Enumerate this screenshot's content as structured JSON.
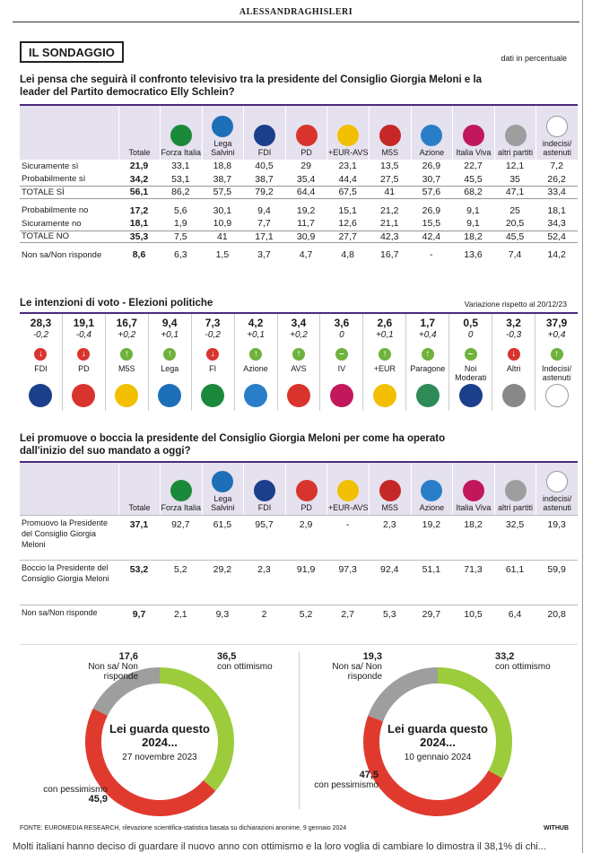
{
  "header": {
    "title": "ALESSANDRAGHISLERI"
  },
  "badge": "IL SONDAGGIO",
  "unit_note": "dati in percentuale",
  "q1": {
    "question": "Lei pensa che seguirà il confronto televisivo tra la presidente del Consiglio Giorgia Meloni e la leader del Partito democratico Elly Schlein?",
    "columns": [
      "Totale",
      "Forza Italia",
      "Lega Salvini",
      "FDI",
      "PD",
      "+EUR-AVS",
      "M5S",
      "Azione",
      "Italia Viva",
      "altri partiti",
      "indecisi/ astenuti"
    ],
    "rows": [
      {
        "label": "Sicuramente sì",
        "values": [
          "21,9",
          "33,1",
          "18,8",
          "40,5",
          "29",
          "23,1",
          "13,5",
          "26,9",
          "22,7",
          "12,1",
          "7,2"
        ]
      },
      {
        "label": "Probabilmente sì",
        "values": [
          "34,2",
          "53,1",
          "38,7",
          "38,7",
          "35,4",
          "44,4",
          "27,5",
          "30,7",
          "45,5",
          "35",
          "26,2"
        ]
      },
      {
        "label": "TOTALE SÌ",
        "values": [
          "56,1",
          "86,2",
          "57,5",
          "79,2",
          "64,4",
          "67,5",
          "41",
          "57,6",
          "68,2",
          "47,1",
          "33,4"
        ]
      },
      {
        "label": "Probabilmente no",
        "values": [
          "17,2",
          "5,6",
          "30,1",
          "9,4",
          "19,2",
          "15,1",
          "21,2",
          "26,9",
          "9,1",
          "25",
          "18,1"
        ]
      },
      {
        "label": "Sicuramente no",
        "values": [
          "18,1",
          "1,9",
          "10,9",
          "7,7",
          "11,7",
          "12,6",
          "21,1",
          "15,5",
          "9,1",
          "20,5",
          "34,3"
        ]
      },
      {
        "label": "TOTALE NO",
        "values": [
          "35,3",
          "7,5",
          "41",
          "17,1",
          "30,9",
          "27,7",
          "42,3",
          "42,4",
          "18,2",
          "45,5",
          "52,4"
        ]
      },
      {
        "label": "Non sa/Non risponde",
        "values": [
          "8,6",
          "6,3",
          "1,5",
          "3,7",
          "4,7",
          "4,8",
          "16,7",
          "-",
          "13,6",
          "7,4",
          "14,2"
        ]
      }
    ]
  },
  "votes": {
    "title": "Le intenzioni di voto - Elezioni politiche",
    "note": "Variazione rispetto al 20/12/23",
    "items": [
      {
        "value": "28,3",
        "change": "-0,2",
        "dir": "down",
        "name": "FDI",
        "color": "#1b3f8b"
      },
      {
        "value": "19,1",
        "change": "-0,4",
        "dir": "down",
        "name": "PD",
        "color": "#d8342d"
      },
      {
        "value": "16,7",
        "change": "+0,2",
        "dir": "up",
        "name": "M5S",
        "color": "#f2c000"
      },
      {
        "value": "9,4",
        "change": "+0,1",
        "dir": "up",
        "name": "Lega",
        "color": "#1d6fb8"
      },
      {
        "value": "7,3",
        "change": "-0,2",
        "dir": "down",
        "name": "FI",
        "color": "#1a8a3a"
      },
      {
        "value": "4,2",
        "change": "+0,1",
        "dir": "up",
        "name": "Azione",
        "color": "#2a7ec8"
      },
      {
        "value": "3,4",
        "change": "+0,2",
        "dir": "up",
        "name": "AVS",
        "color": "#d8342d"
      },
      {
        "value": "3,6",
        "change": "0",
        "dir": "flat",
        "name": "IV",
        "color": "#c2185b"
      },
      {
        "value": "2,6",
        "change": "+0,1",
        "dir": "up",
        "name": "+EUR",
        "color": "#f2c000"
      },
      {
        "value": "1,7",
        "change": "+0,4",
        "dir": "up",
        "name": "Paragone",
        "color": "#2e8b57"
      },
      {
        "value": "0,5",
        "change": "0",
        "dir": "flat",
        "name": "Noi Moderati",
        "color": "#1b3f8b"
      },
      {
        "value": "3,2",
        "change": "-0,3",
        "dir": "down",
        "name": "Altri",
        "color": "#888888"
      },
      {
        "value": "37,9",
        "change": "+0,4",
        "dir": "up",
        "name": "Indecisi/ astenuti",
        "color": "#ffffff"
      }
    ]
  },
  "q2": {
    "question": "Lei promuove o boccia la presidente del Consiglio Giorgia Meloni per come ha operato dall'inizio del suo mandato a oggi?",
    "rows": [
      {
        "label": "Promuovo la Presidente del Consiglio Giorgia Meloni",
        "values": [
          "37,1",
          "92,7",
          "61,5",
          "95,7",
          "2,9",
          "-",
          "2,3",
          "19,2",
          "18,2",
          "32,5",
          "19,3"
        ]
      },
      {
        "label": "Boccio la Presidente del Consiglio Giorgia Meloni",
        "values": [
          "53,2",
          "5,2",
          "29,2",
          "2,3",
          "91,9",
          "97,3",
          "92,4",
          "51,1",
          "71,3",
          "61,1",
          "59,9"
        ]
      },
      {
        "label": "Non sa/Non risponde",
        "values": [
          "9,7",
          "2,1",
          "9,3",
          "2",
          "5,2",
          "2,7",
          "5,3",
          "29,7",
          "10,5",
          "6,4",
          "20,8"
        ]
      }
    ]
  },
  "chart_data": [
    {
      "type": "pie",
      "title": "Lei guarda questo 2024...",
      "subtitle": "27 novembre 2023",
      "categories": [
        "con ottimismo",
        "con pessimismo",
        "Non sa/ Non risponde"
      ],
      "values": [
        36.5,
        45.9,
        17.6
      ],
      "labels": [
        "36,5",
        "45,9",
        "17,6"
      ],
      "colors": [
        "#9ccc3c",
        "#e03a2f",
        "#9e9e9e"
      ]
    },
    {
      "type": "pie",
      "title": "Lei guarda questo 2024...",
      "subtitle": "10 gennaio 2024",
      "categories": [
        "con ottimismo",
        "con pessimismo",
        "Non sa/ Non risponde"
      ],
      "values": [
        33.2,
        47.5,
        19.3
      ],
      "labels": [
        "33,2",
        "47,5",
        "19,3"
      ],
      "colors": [
        "#9ccc3c",
        "#e03a2f",
        "#9e9e9e"
      ]
    }
  ],
  "source": "FONTE: EUROMEDIA RESEARCH, rilevazione scientifica-statistica basata su dichiarazioni anonime, 9 gennaio 2024",
  "brand": "WITHUB",
  "bottom_text": "Molti italiani hanno deciso di guardare il nuovo anno con ottimismo e la loro voglia di cambiare lo dimostra il 38,1% di chi..."
}
